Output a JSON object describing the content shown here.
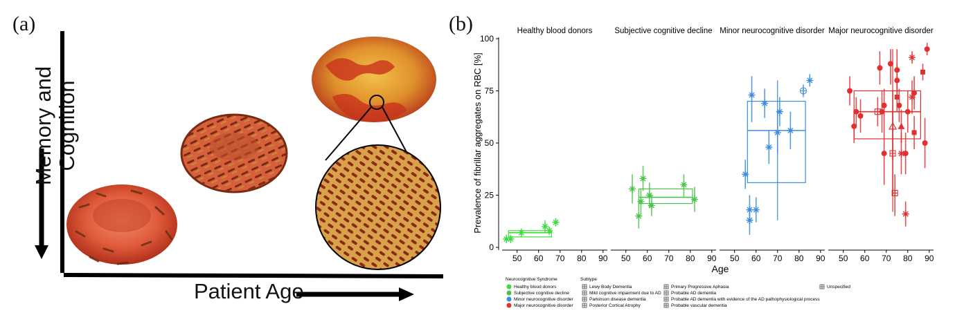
{
  "panel_a": {
    "label": "(a)",
    "y_label_line1": "Memory and",
    "y_label_line2": "Cognition",
    "x_label": "Patient Age"
  },
  "panel_b": {
    "label": "(b)"
  },
  "colors": {
    "Healthy blood donors": "#3ddc3d",
    "Subjective cognitive decline": "#49c449",
    "Minor neurocognitive disorder": "#3b8de0",
    "Major neurocognitive disorder": "#e03030"
  },
  "chart_data": {
    "type": "scatter",
    "ylabel": "Prevalence of fibrillar aggregates on RBC [%]",
    "xlabel": "Age",
    "ylim": [
      0,
      100
    ],
    "yticks": [
      0,
      25,
      50,
      75,
      100
    ],
    "xlim": [
      43,
      92
    ],
    "xticks": [
      50,
      60,
      70,
      80,
      90
    ],
    "facets": [
      {
        "title": "Healthy blood donors",
        "box": {
          "xmin": 46,
          "xmax": 66,
          "q1": 5,
          "median": 7,
          "q3": 8
        },
        "points": [
          {
            "x": 45,
            "y": 4,
            "lo": 2,
            "hi": 6,
            "subtype": "Unspecified"
          },
          {
            "x": 47,
            "y": 4,
            "lo": 2,
            "hi": 6,
            "subtype": "Unspecified"
          },
          {
            "x": 52,
            "y": 7,
            "lo": 5,
            "hi": 9,
            "subtype": "Unspecified"
          },
          {
            "x": 63,
            "y": 10,
            "lo": 7,
            "hi": 13,
            "subtype": "Unspecified"
          },
          {
            "x": 65,
            "y": 8,
            "lo": 6,
            "hi": 10,
            "subtype": "Unspecified"
          },
          {
            "x": 68,
            "y": 12,
            "lo": 10,
            "hi": 14,
            "subtype": "Unspecified"
          }
        ]
      },
      {
        "title": "Subjective cognitive decline",
        "box": {
          "xmin": 56,
          "xmax": 81,
          "q1": 21,
          "median": 24,
          "q3": 28
        },
        "points": [
          {
            "x": 53,
            "y": 28,
            "lo": 21,
            "hi": 35,
            "subtype": "Unspecified"
          },
          {
            "x": 56,
            "y": 15,
            "lo": 9,
            "hi": 21,
            "subtype": "Unspecified"
          },
          {
            "x": 57,
            "y": 22,
            "lo": 16,
            "hi": 28,
            "subtype": "Unspecified"
          },
          {
            "x": 58,
            "y": 33,
            "lo": 27,
            "hi": 39,
            "subtype": "Unspecified"
          },
          {
            "x": 61,
            "y": 25,
            "lo": 19,
            "hi": 31,
            "subtype": "Unspecified"
          },
          {
            "x": 62,
            "y": 20,
            "lo": 15,
            "hi": 25,
            "subtype": "Unspecified"
          },
          {
            "x": 77,
            "y": 30,
            "lo": 24,
            "hi": 35,
            "subtype": "Unspecified"
          },
          {
            "x": 82,
            "y": 23,
            "lo": 17,
            "hi": 29,
            "subtype": "Unspecified"
          }
        ]
      },
      {
        "title": "Minor neurocognitive disorder",
        "box": {
          "xmin": 56,
          "xmax": 83,
          "q1": 31,
          "median": 56,
          "q3": 70
        },
        "whisker": {
          "x": 70,
          "lo": 13,
          "hi": 80
        },
        "points": [
          {
            "x": 55,
            "y": 35,
            "lo": 28,
            "hi": 42,
            "subtype": "Unspecified"
          },
          {
            "x": 57,
            "y": 18,
            "lo": 11,
            "hi": 25,
            "subtype": "Unspecified"
          },
          {
            "x": 57,
            "y": 13,
            "lo": 6,
            "hi": 20,
            "subtype": "Unspecified"
          },
          {
            "x": 58,
            "y": 73,
            "lo": 60,
            "hi": 82,
            "subtype": "Unspecified"
          },
          {
            "x": 60,
            "y": 18,
            "lo": 12,
            "hi": 24,
            "subtype": "Unspecified"
          },
          {
            "x": 64,
            "y": 69,
            "lo": 62,
            "hi": 76,
            "subtype": "Unspecified"
          },
          {
            "x": 66,
            "y": 48,
            "lo": 40,
            "hi": 56,
            "subtype": "Unspecified"
          },
          {
            "x": 70,
            "y": 55,
            "lo": 45,
            "hi": 65,
            "subtype": "Unspecified"
          },
          {
            "x": 71,
            "y": 65,
            "lo": 58,
            "hi": 72,
            "subtype": "Unspecified"
          },
          {
            "x": 76,
            "y": 56,
            "lo": 47,
            "hi": 65,
            "subtype": "Unspecified"
          },
          {
            "x": 82,
            "y": 75,
            "lo": 72,
            "hi": 78,
            "subtype": "Mild cognitive impairment due to AD"
          },
          {
            "x": 85,
            "y": 80,
            "lo": 77,
            "hi": 83,
            "subtype": "Unspecified"
          }
        ]
      },
      {
        "title": "Major neurocognitive disorder",
        "box": {
          "xmin": 55,
          "xmax": 86,
          "q1": 52,
          "median": 65,
          "q3": 75
        },
        "whisker": {
          "x": 73,
          "lo": 17,
          "hi": 95
        },
        "points": [
          {
            "x": 53,
            "y": 75,
            "lo": 68,
            "hi": 82,
            "subtype": "Probable AD dementia"
          },
          {
            "x": 55,
            "y": 58,
            "lo": 50,
            "hi": 66,
            "subtype": "Probable AD dementia"
          },
          {
            "x": 56,
            "y": 65,
            "lo": 58,
            "hi": 72,
            "subtype": "Probable AD dementia"
          },
          {
            "x": 58,
            "y": 63,
            "lo": 55,
            "hi": 71,
            "subtype": "Probable AD dementia"
          },
          {
            "x": 66,
            "y": 65,
            "lo": 58,
            "hi": 72,
            "subtype": "Primary Progressive Aphasia"
          },
          {
            "x": 67,
            "y": 86,
            "lo": 78,
            "hi": 94,
            "subtype": "Probable AD dementia"
          },
          {
            "x": 68,
            "y": 65,
            "lo": 55,
            "hi": 75,
            "subtype": "Probable AD dementia"
          },
          {
            "x": 69,
            "y": 68,
            "lo": 60,
            "hi": 76,
            "subtype": "Probable AD dementia"
          },
          {
            "x": 69,
            "y": 45,
            "lo": 30,
            "hi": 60,
            "subtype": "Probable AD dementia"
          },
          {
            "x": 72,
            "y": 88,
            "lo": 78,
            "hi": 95,
            "subtype": "Probable AD dementia"
          },
          {
            "x": 73,
            "y": 58,
            "lo": 42,
            "hi": 75,
            "subtype": "Parkinson disease dementia"
          },
          {
            "x": 73,
            "y": 45,
            "lo": 25,
            "hi": 65,
            "subtype": "Primary Progressive Aphasia"
          },
          {
            "x": 74,
            "y": 26,
            "lo": 15,
            "hi": 35,
            "subtype": "Primary Progressive Aphasia"
          },
          {
            "x": 75,
            "y": 85,
            "lo": 75,
            "hi": 95,
            "subtype": "Probable AD dementia"
          },
          {
            "x": 75,
            "y": 72,
            "lo": 65,
            "hi": 80,
            "subtype": "Probable vascular dementia"
          },
          {
            "x": 75,
            "y": 80,
            "lo": 72,
            "hi": 88,
            "subtype": "Probable AD dementia"
          },
          {
            "x": 76,
            "y": 68,
            "lo": 60,
            "hi": 76,
            "subtype": "Probable AD dementia"
          },
          {
            "x": 77,
            "y": 58,
            "lo": 50,
            "hi": 66,
            "subtype": "Lewy Body Dementia"
          },
          {
            "x": 77,
            "y": 45,
            "lo": 35,
            "hi": 55,
            "subtype": "Unspecified"
          },
          {
            "x": 79,
            "y": 16,
            "lo": 10,
            "hi": 22,
            "subtype": "Unspecified"
          },
          {
            "x": 79,
            "y": 45,
            "lo": 35,
            "hi": 55,
            "subtype": "Probable AD dementia"
          },
          {
            "x": 80,
            "y": 65,
            "lo": 55,
            "hi": 75,
            "subtype": "Probable AD dementia"
          },
          {
            "x": 82,
            "y": 72,
            "lo": 64,
            "hi": 80,
            "subtype": "Unspecified"
          },
          {
            "x": 82,
            "y": 91,
            "lo": 88,
            "hi": 94,
            "subtype": "Unspecified"
          },
          {
            "x": 83,
            "y": 55,
            "lo": 47,
            "hi": 63,
            "subtype": "Probable vascular dementia"
          },
          {
            "x": 83,
            "y": 74,
            "lo": 66,
            "hi": 82,
            "subtype": "Probable AD dementia"
          },
          {
            "x": 87,
            "y": 84,
            "lo": 80,
            "hi": 88,
            "subtype": "Probable vascular dementia"
          },
          {
            "x": 88,
            "y": 50,
            "lo": 38,
            "hi": 62,
            "subtype": "Probable AD dementia"
          },
          {
            "x": 89,
            "y": 95,
            "lo": 92,
            "hi": 98,
            "subtype": "Probable AD dementia"
          }
        ]
      }
    ],
    "legend": {
      "syndrome_title": "Neurocognitive Syndrome",
      "syndromes": [
        "Healthy blood donors",
        "Subjective cognitive decline",
        "Minor neurocognitive disorder",
        "Major neurocognitive disorder"
      ],
      "subtype_title": "Subtype",
      "subtypes_col1": [
        "Lewy Body Dementia",
        "Mild cognitive impairment due to AD",
        "Parkinson disease dementia",
        "Posterior Cortical Atrophy"
      ],
      "subtypes_col2": [
        "Primary Progressive Aphasia",
        "Probable AD dementia",
        "Probable AD dementia with evidence of the AD pathophysiological process",
        "Probable vascular dementia"
      ],
      "subtypes_col3": [
        "Unspecified"
      ]
    }
  }
}
